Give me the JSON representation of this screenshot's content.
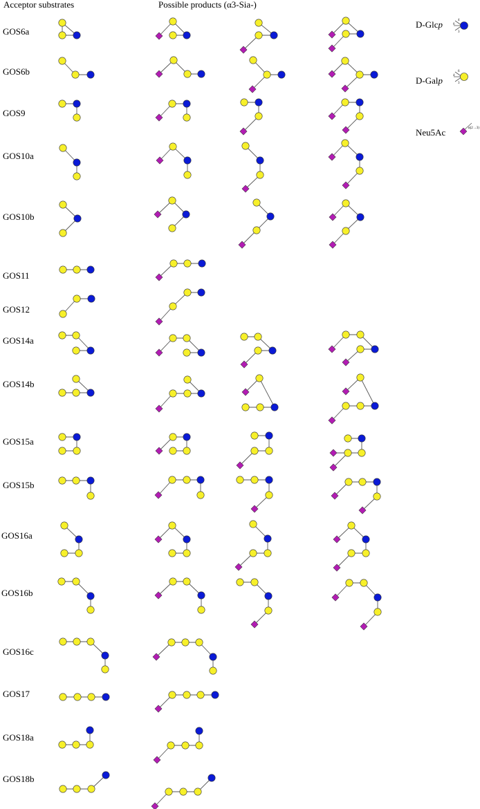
{
  "headers": {
    "acceptor": "Acceptor substrates",
    "products": "Possible products (α3-Sia-)"
  },
  "legend": {
    "glc_prefix": "D-Glc",
    "glc_suffix": "p",
    "gal_prefix": "D-Gal",
    "gal_suffix": "p",
    "neu5ac": "Neu5Ac",
    "linkage": "α(2→3)",
    "glc_pos_top": "4",
    "glc_pos_bottom": "3",
    "glc_pos_left": "6",
    "gal_pos_top": "6",
    "gal_pos_bottom": "3",
    "gal_pos_left": "4"
  },
  "colors": {
    "glucose_fill": "#0a1ad6",
    "galactose_fill": "#f7f02a",
    "neu5ac_fill": "#b21cb3",
    "bond": "#555555",
    "outline": "#333333"
  },
  "rows": [
    "GOS6a",
    "GOS6b",
    "GOS9",
    "GOS10a",
    "GOS10b",
    "GOS11",
    "GOS12",
    "GOS14a",
    "GOS14b",
    "GOS15a",
    "GOS15b",
    "GOS16a",
    "GOS16b",
    "GOS16c",
    "GOS17",
    "GOS18a",
    "GOS18b"
  ]
}
